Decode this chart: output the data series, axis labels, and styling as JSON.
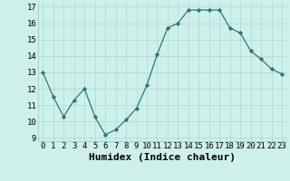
{
  "x": [
    0,
    1,
    2,
    3,
    4,
    5,
    6,
    7,
    8,
    9,
    10,
    11,
    12,
    13,
    14,
    15,
    16,
    17,
    18,
    19,
    20,
    21,
    22,
    23
  ],
  "y": [
    13.0,
    11.5,
    10.3,
    11.3,
    12.0,
    10.3,
    9.2,
    9.5,
    10.1,
    10.8,
    12.2,
    14.1,
    15.7,
    16.0,
    16.8,
    16.8,
    16.8,
    16.8,
    15.7,
    15.4,
    14.3,
    13.8,
    13.2,
    12.9
  ],
  "xlabel": "Humidex (Indice chaleur)",
  "xlim": [
    -0.5,
    23.5
  ],
  "ylim": [
    8.8,
    17.3
  ],
  "yticks": [
    9,
    10,
    11,
    12,
    13,
    14,
    15,
    16,
    17
  ],
  "xticks": [
    0,
    1,
    2,
    3,
    4,
    5,
    6,
    7,
    8,
    9,
    10,
    11,
    12,
    13,
    14,
    15,
    16,
    17,
    18,
    19,
    20,
    21,
    22,
    23
  ],
  "xtick_labels": [
    "0",
    "1",
    "2",
    "3",
    "4",
    "5",
    "6",
    "7",
    "8",
    "9",
    "10",
    "11",
    "12",
    "13",
    "14",
    "15",
    "16",
    "17",
    "18",
    "19",
    "20",
    "21",
    "22",
    "23"
  ],
  "line_color": "#2d7a6b",
  "marker": "D",
  "marker_size": 2.2,
  "bg_color": "#cef0eb",
  "grid_color": "#a8d8d0",
  "xlabel_fontsize": 8,
  "tick_fontsize": 6.5
}
